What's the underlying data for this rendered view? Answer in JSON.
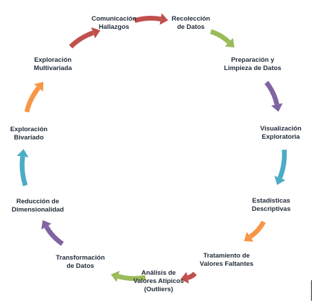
{
  "diagram": {
    "type": "cycle",
    "steps": [
      {
        "lines": [
          "Recolección",
          "de Datos"
        ],
        "color": "#c0504d"
      },
      {
        "lines": [
          "Preparación y",
          "Limpieza de Datos"
        ],
        "color": "#9bbb59"
      },
      {
        "lines": [
          "Visualización",
          "Exploratoria"
        ],
        "color": "#8064a2"
      },
      {
        "lines": [
          "Estadísticas",
          "Descriptivas"
        ],
        "color": "#4bacc6"
      },
      {
        "lines": [
          "Tratamiento de",
          "Valores Faltantes"
        ],
        "color": "#f79646"
      },
      {
        "lines": [
          "Análisis de",
          "Valores Atípicos",
          "(Outliers)"
        ],
        "color": "#c0504d"
      },
      {
        "lines": [
          "Transformación",
          "de Datos"
        ],
        "color": "#9bbb59"
      },
      {
        "lines": [
          "Reducción de",
          "Dimensionalidad"
        ],
        "color": "#8064a2"
      },
      {
        "lines": [
          "Exploración",
          "Bivariado"
        ],
        "color": "#4bacc6"
      },
      {
        "lines": [
          "Exploración",
          "Multivariada"
        ],
        "color": "#f79646"
      },
      {
        "lines": [
          "Comunicación",
          "Hallazgos"
        ],
        "color": "#c0504d"
      }
    ]
  }
}
